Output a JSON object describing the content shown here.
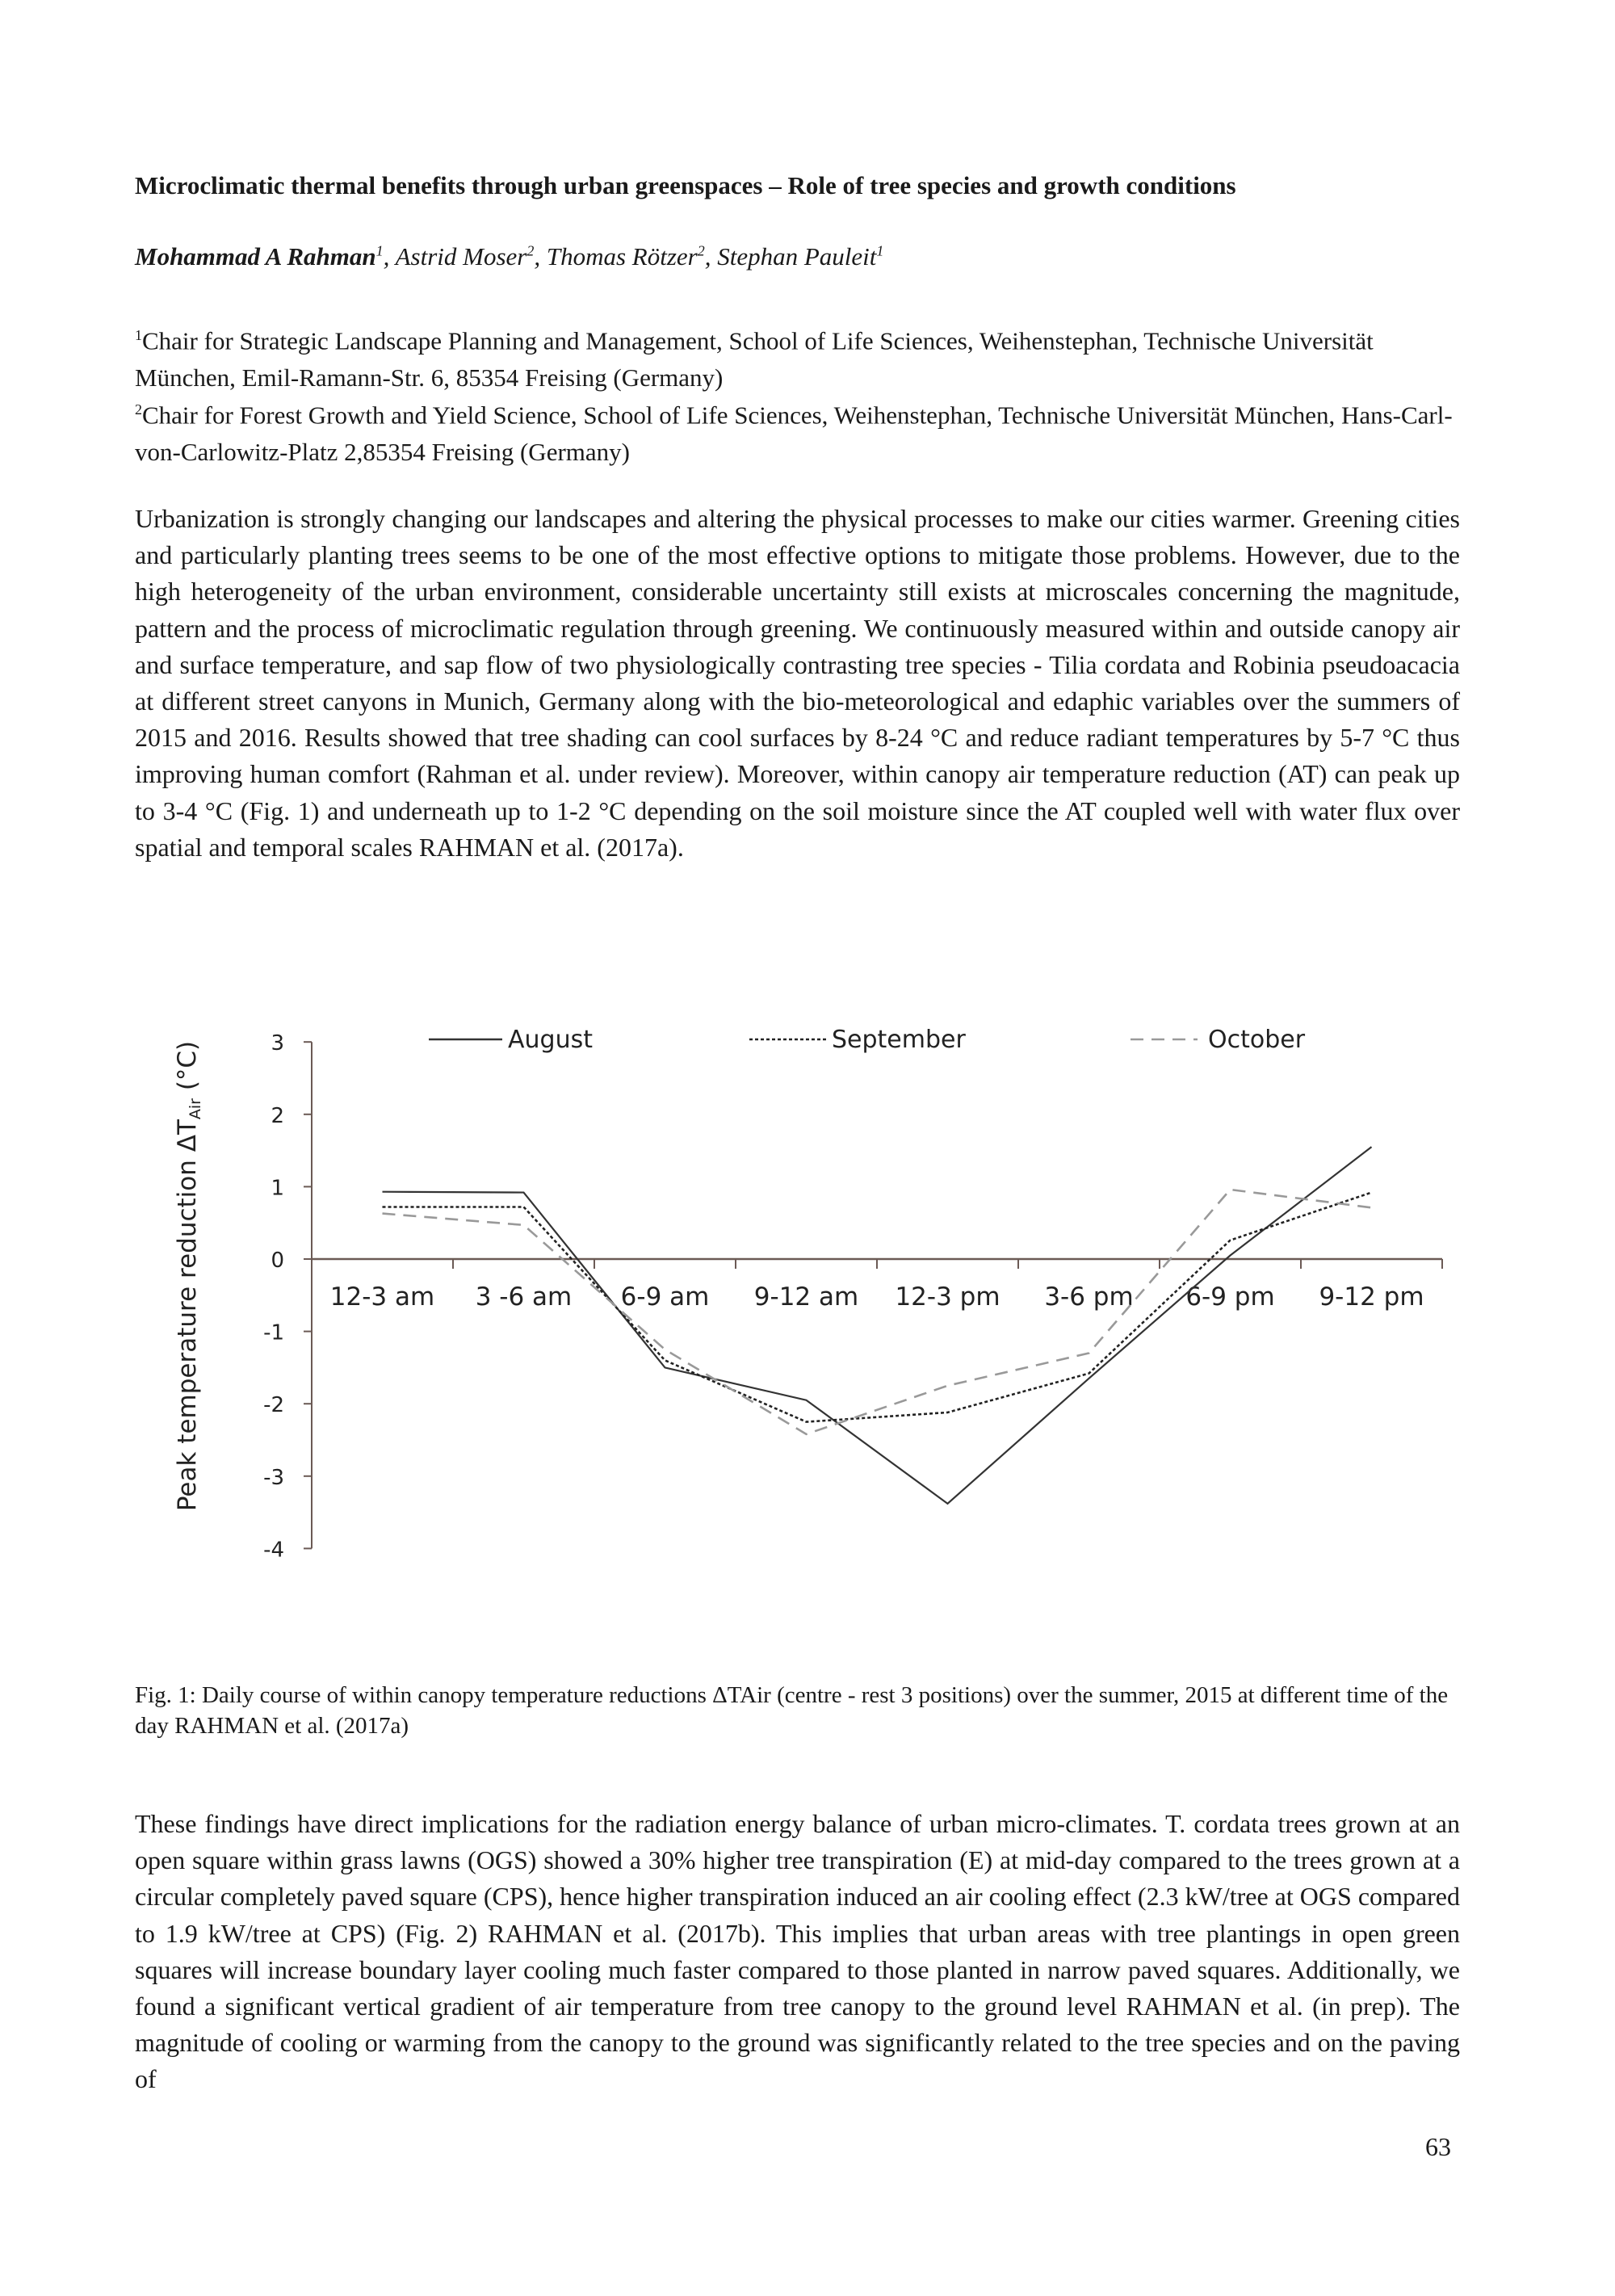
{
  "title": "Microclimatic thermal benefits through urban greenspaces – Role of tree species and growth conditions",
  "authors": [
    {
      "name": "Mohammad A Rahman",
      "sup": "1",
      "bold": true
    },
    {
      "name": "Astrid Moser",
      "sup": "2"
    },
    {
      "name": "Thomas Rötzer",
      "sup": "2"
    },
    {
      "name": "Stephan Pauleit",
      "sup": "1"
    }
  ],
  "affiliations": [
    {
      "sup": "1",
      "text": "Chair for Strategic Landscape Planning and Management, School of Life Sciences, Weihenstephan, Technische Universität München, Emil-Ramann-Str. 6, 85354 Freising (Germany)"
    },
    {
      "sup": "2",
      "text": "Chair for Forest Growth and Yield Science, School of Life Sciences, Weihenstephan, Technische Universität München, Hans-Carl-von-Carlowitz-Platz 2,85354 Freising (Germany)"
    }
  ],
  "paragraph1": "Urbanization is strongly changing our landscapes and altering the physical processes to make our cities warmer. Greening cities and particularly planting trees seems to be one of the most effective options to mitigate those problems. However, due to the high heterogeneity of the urban environment, considerable uncertainty still exists at microscales concerning the magnitude, pattern and the process of microclimatic regulation through greening. We continuously measured within and outside canopy air and surface temperature, and sap flow of two physiologically contrasting tree species - Tilia cordata and Robinia pseudoacacia at different street canyons in Munich, Germany along with the bio-meteorological and edaphic variables over the summers of 2015 and 2016. Results showed that tree shading can cool surfaces by 8-24 °C and reduce radiant temperatures by 5-7 °C thus improving human comfort (Rahman et al. under review). Moreover, within canopy air temperature reduction (AT) can peak up to 3-4 °C (Fig. 1) and underneath up to 1-2 °C depending on the soil moisture since the AT coupled well with water flux over spatial and temporal scales RAHMAN et al. (2017a).",
  "caption": "Fig. 1: Daily course of within canopy temperature reductions ΔTAir (centre - rest 3 positions) over the summer, 2015 at different time of the day RAHMAN et al. (2017a)",
  "paragraph2": "These findings have direct implications for the radiation energy balance of urban micro-climates. T. cordata trees grown at an open square within grass lawns (OGS) showed a 30% higher tree transpiration (E) at mid-day compared to the trees grown at a circular completely paved square (CPS), hence higher transpiration induced an air cooling effect (2.3 kW/tree at OGS compared to 1.9 kW/tree at CPS) (Fig. 2) RAHMAN et al. (2017b). This implies that urban areas with tree plantings in open green squares will increase boundary layer cooling much faster compared to those planted in narrow paved squares. Additionally, we found a significant vertical gradient of air temperature from tree canopy to the ground level RAHMAN et al. (in prep). The magnitude of cooling or warming from the canopy to the ground was significantly related to the tree species and on the paving of",
  "page_number": "63",
  "chart_data": {
    "type": "line",
    "title": "",
    "xlabel": "",
    "ylabel": {
      "main": "Peak temperature reduction ΔT",
      "sub": "Air",
      "unit": " (°C)"
    },
    "categories": [
      "12-3 am",
      "3 -6 am",
      "6-9 am",
      "9-12 am",
      "12-3 pm",
      "3-6 pm",
      "6-9 pm",
      "9-12 pm"
    ],
    "ylim": [
      -4,
      3
    ],
    "yticks": [
      "3",
      "2",
      "1",
      "0",
      "-1",
      "-2",
      "-3",
      "-4"
    ],
    "grid": false,
    "legend_placement": "top",
    "series": [
      {
        "name": "August",
        "style": "solid",
        "color": "#333333",
        "values": [
          0.93,
          0.92,
          -1.5,
          -1.95,
          -3.38,
          -1.65,
          0.05,
          1.55
        ]
      },
      {
        "name": "September",
        "style": "dotted",
        "color": "#222222",
        "values": [
          0.72,
          0.72,
          -1.4,
          -2.25,
          -2.12,
          -1.58,
          0.26,
          0.92
        ]
      },
      {
        "name": "October",
        "style": "dashed",
        "color": "#999999",
        "values": [
          0.63,
          0.47,
          -1.25,
          -2.42,
          -1.75,
          -1.3,
          0.96,
          0.71
        ]
      }
    ]
  }
}
